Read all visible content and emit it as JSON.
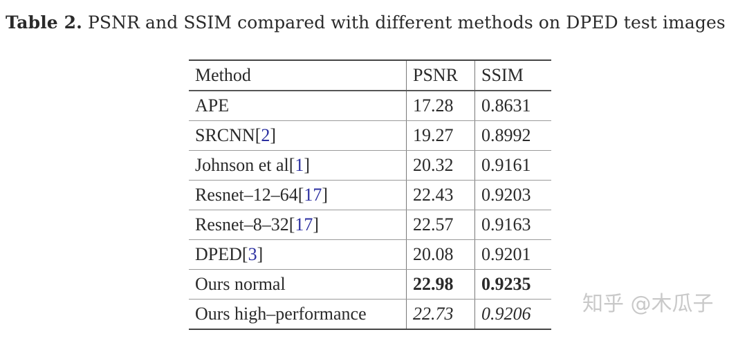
{
  "caption": {
    "label": "Table 2.",
    "text": " PSNR and SSIM compared with different methods on DPED test images"
  },
  "table": {
    "headers": [
      "Method",
      "PSNR",
      "SSIM"
    ],
    "rows": [
      {
        "method": "APE",
        "ref": "",
        "psnr": "17.28",
        "ssim": "0.8631",
        "style": "normal"
      },
      {
        "method": "SRCNN[",
        "ref": "2",
        "psnr": "19.27",
        "ssim": "0.8992",
        "style": "normal"
      },
      {
        "method": "Johnson et al[",
        "ref": "1",
        "psnr": "20.32",
        "ssim": "0.9161",
        "style": "normal"
      },
      {
        "method": "Resnet–12–64[",
        "ref": "17",
        "psnr": "22.43",
        "ssim": "0.9203",
        "style": "normal"
      },
      {
        "method": "Resnet–8–32[",
        "ref": "17",
        "psnr": "22.57",
        "ssim": "0.9163",
        "style": "normal"
      },
      {
        "method": "DPED[",
        "ref": "3",
        "psnr": "20.08",
        "ssim": "0.9201",
        "style": "normal"
      },
      {
        "method": "Ours normal",
        "ref": "",
        "psnr": "22.98",
        "ssim": "0.9235",
        "style": "bold"
      },
      {
        "method": "Ours high–performance",
        "ref": "",
        "psnr": "22.73",
        "ssim": "0.9206",
        "style": "italic"
      }
    ]
  },
  "watermark": "知乎 @木瓜子"
}
